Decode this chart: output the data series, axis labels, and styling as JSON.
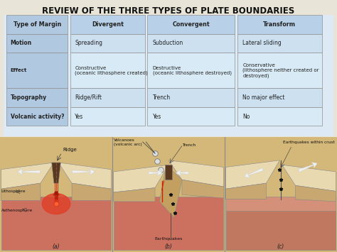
{
  "title": "REVIEW OF THE THREE TYPES OF PLATE BOUNDARIES",
  "title_fontsize": 8.5,
  "title_fontweight": "bold",
  "bg_color": "#e8e4d8",
  "table_bg": "#ddeaf5",
  "table_header_bg": "#b8d0e8",
  "table_label_bg": "#b0c8e0",
  "table_row1_bg": "#cce0f0",
  "table_row2_bg": "#d8eaf5",
  "col_headers": [
    "Type of Margin",
    "Divergent",
    "Convergent",
    "Transform"
  ],
  "rows": [
    [
      "Motion",
      "Spreading",
      "Subduction",
      "Lateral sliding"
    ],
    [
      "Effect",
      "Constructive\n(oceanic lithosphere created)",
      "Destructive\n(oceanic lithosphere destroyed)",
      "Conservative\n(lithosphere neither created or\ndestroyed)"
    ],
    [
      "Topography",
      "Ridge/Rift",
      "Trench",
      "No major effect"
    ],
    [
      "Volcanic activity?",
      "Yes",
      "Yes",
      "No"
    ]
  ],
  "diagram_bg": "#d4b87a",
  "plate_top_color": "#e8d9b0",
  "plate_side_color": "#c8a870",
  "plate_bottom_color": "#b08050",
  "mantle_color": "#cc7060",
  "mantle_hot_color": "#e85030",
  "arrow_white": "#f0f0f0",
  "border_color": "#909090"
}
